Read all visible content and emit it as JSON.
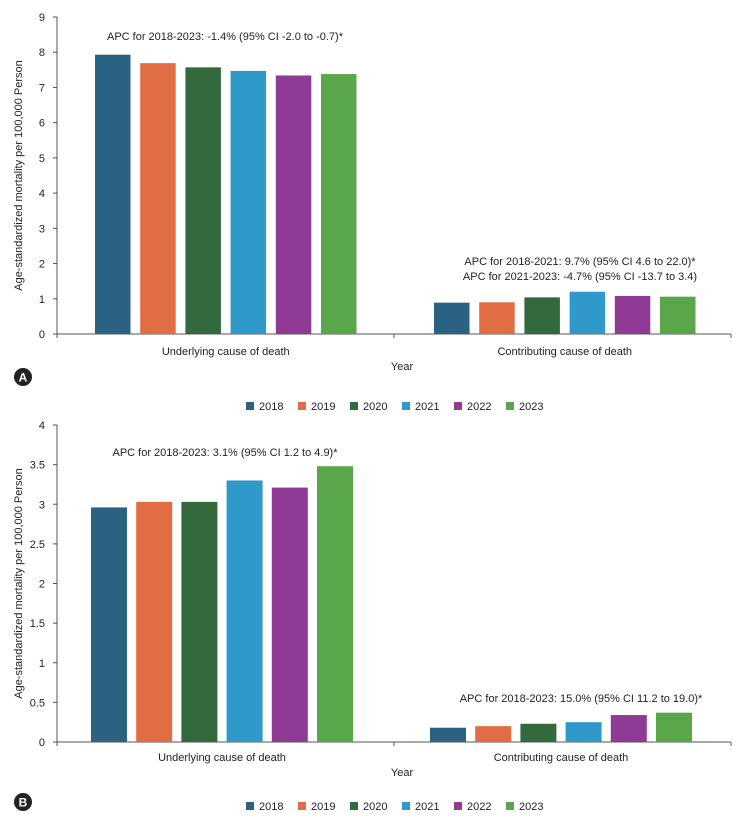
{
  "colors": {
    "2018": "#2b6282",
    "2019": "#e06d44",
    "2020": "#326a3e",
    "2021": "#2f9ac9",
    "2022": "#8f3a94",
    "2023": "#5aa64a"
  },
  "chart_data": [
    {
      "type": "bar",
      "panel_label": "A",
      "categories": [
        "Underlying cause of death",
        "Contributing cause of death"
      ],
      "series": [
        {
          "name": "2018",
          "values": [
            7.93,
            0.89
          ]
        },
        {
          "name": "2019",
          "values": [
            7.69,
            0.9
          ]
        },
        {
          "name": "2020",
          "values": [
            7.57,
            1.04
          ]
        },
        {
          "name": "2021",
          "values": [
            7.47,
            1.2
          ]
        },
        {
          "name": "2022",
          "values": [
            7.34,
            1.08
          ]
        },
        {
          "name": "2023",
          "values": [
            7.38,
            1.06
          ]
        }
      ],
      "xlabel": "Year",
      "ylabel": "Age-standardized mortality per 100,000 Person",
      "ylim": [
        0,
        9
      ],
      "yticks": [
        "0",
        "1",
        "2",
        "3",
        "4",
        "5",
        "6",
        "7",
        "8",
        "9"
      ],
      "annotations": [
        [
          "APC for 2018-2023: -1.4% (95% CI -2.0 to -0.7)*"
        ],
        [
          "APC for 2018-2021: 9.7% (95% CI 4.6 to 22.0)*",
          "APC for 2021-2023: -4.7% (95% CI -13.7 to 3.4)"
        ]
      ],
      "legend": "bottom"
    },
    {
      "type": "bar",
      "panel_label": "B",
      "categories": [
        "Underlying cause of death",
        "Contributing cause of death"
      ],
      "series": [
        {
          "name": "2018",
          "values": [
            2.96,
            0.18
          ]
        },
        {
          "name": "2019",
          "values": [
            3.03,
            0.2
          ]
        },
        {
          "name": "2020",
          "values": [
            3.03,
            0.23
          ]
        },
        {
          "name": "2021",
          "values": [
            3.3,
            0.25
          ]
        },
        {
          "name": "2022",
          "values": [
            3.21,
            0.34
          ]
        },
        {
          "name": "2023",
          "values": [
            3.48,
            0.37
          ]
        }
      ],
      "xlabel": "Year",
      "ylabel": "Age-standardized mortality per 100,000 Person",
      "ylim": [
        0,
        4
      ],
      "yticks": [
        "0",
        "0.5",
        "1",
        "1.5",
        "2",
        "2.5",
        "3",
        "3.5",
        "4"
      ],
      "annotations": [
        [
          "APC for 2018-2023: 3.1% (95% CI 1.2 to 4.9)*"
        ],
        [
          "APC for 2018-2023: 15.0% (95% CI 11.2 to 19.0)*"
        ]
      ],
      "legend": "bottom"
    }
  ]
}
